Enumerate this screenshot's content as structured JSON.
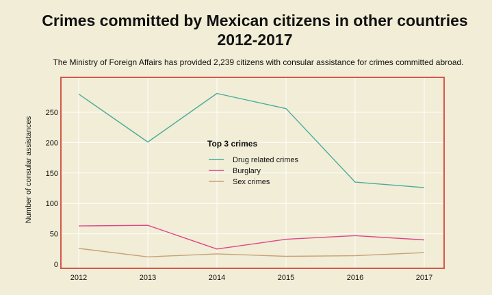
{
  "header": {
    "title_line1": "Crimes committed by Mexican citizens in other countries",
    "title_line2": "2012-2017",
    "subtitle": "The Ministry of Foreign Affairs has provided 2,239 citizens with consular assistance for crimes committed abroad."
  },
  "chart_data": {
    "type": "line",
    "title": "Crimes committed by Mexican citizens in other countries 2012-2017",
    "subtitle": "The Ministry of Foreign Affairs has provided 2,239 citizens with consular assistance for crimes committed abroad.",
    "xlabel": "",
    "ylabel": "Number of consular assistances",
    "x": [
      "2012",
      "2013",
      "2014",
      "2015",
      "2016",
      "2017"
    ],
    "yticks": [
      0,
      50,
      100,
      150,
      200,
      250
    ],
    "ylim": [
      0,
      300
    ],
    "grid": true,
    "legend": {
      "title": "Top 3 crimes",
      "placement": "center"
    },
    "series": [
      {
        "name": "Drug related crimes",
        "color": "#4aab9b",
        "values": [
          280,
          201,
          281,
          256,
          135,
          126
        ]
      },
      {
        "name": "Burglary",
        "color": "#e0458a",
        "values": [
          63,
          64,
          25,
          41,
          47,
          40
        ]
      },
      {
        "name": "Sex crimes",
        "color": "#c9a07a",
        "values": [
          26,
          12,
          17,
          13,
          14,
          19
        ]
      }
    ],
    "frame_color": "#d8564a",
    "grid_color": "#ffffff"
  }
}
